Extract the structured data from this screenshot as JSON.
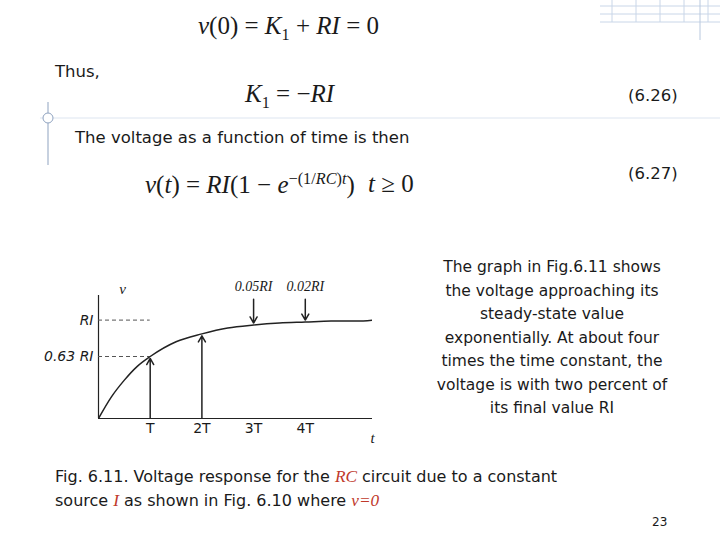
{
  "header_equation": [
    {
      "text": "v",
      "style": "italic"
    },
    {
      "text": "(0) = ",
      "style": "roman"
    },
    {
      "text": "K",
      "style": "italic"
    },
    {
      "text": "1",
      "style": "sub"
    },
    {
      "text": " + ",
      "style": "roman"
    },
    {
      "text": "RI",
      "style": "italic"
    },
    {
      "text": " = 0",
      "style": "roman"
    }
  ],
  "thus": "Thus,",
  "equation_626": {
    "runs": [
      {
        "text": "K",
        "style": "italic"
      },
      {
        "text": "1",
        "style": "sub"
      },
      {
        "text": " = −",
        "style": "roman"
      },
      {
        "text": "RI",
        "style": "italic"
      }
    ],
    "number": "(6.26)"
  },
  "intro": "The voltage as a function of time is then",
  "equation_627": {
    "runs": [
      {
        "text": "v",
        "style": "italic"
      },
      {
        "text": "(",
        "style": "roman"
      },
      {
        "text": "t",
        "style": "italic"
      },
      {
        "text": ") = ",
        "style": "roman"
      },
      {
        "text": "RI",
        "style": "italic"
      },
      {
        "text": "(1 − ",
        "style": "roman"
      },
      {
        "text": "e",
        "style": "italic"
      },
      {
        "text": "−(1/",
        "style": "sup"
      },
      {
        "text": "RC",
        "style": "sup-italic"
      },
      {
        "text": ")",
        "style": "sup"
      },
      {
        "text": "t",
        "style": "sup-italic"
      },
      {
        "text": ")",
        "style": "roman"
      }
    ],
    "condition": [
      {
        "text": "t",
        "style": "italic"
      },
      {
        "text": " ≥ 0",
        "style": "roman"
      }
    ],
    "number": "(6.27)"
  },
  "chart_data": {
    "type": "line",
    "x_label": "t",
    "y_label": "v",
    "x": [
      0,
      0.25,
      0.5,
      0.75,
      1,
      1.5,
      2,
      2.5,
      3,
      3.5,
      4,
      4.5,
      5,
      5.3
    ],
    "values": [
      0,
      0.22,
      0.39,
      0.53,
      0.63,
      0.78,
      0.86,
      0.92,
      0.95,
      0.97,
      0.98,
      0.99,
      0.99,
      1.0
    ],
    "color": "#222222",
    "xlim": [
      0,
      5.3
    ],
    "ylim": [
      0,
      1.25
    ],
    "xticks": [
      {
        "value": 1,
        "label": "T"
      },
      {
        "value": 2,
        "label": "2T"
      },
      {
        "value": 3,
        "label": "3T"
      },
      {
        "value": 4,
        "label": "4T"
      }
    ],
    "yticks": [
      {
        "value": 0.63,
        "label": "0.63 RI"
      },
      {
        "value": 1,
        "label": "RI"
      }
    ],
    "annotations": [
      {
        "text": "0.05RI",
        "x": 3
      },
      {
        "text": "0.02RI",
        "x": 4
      }
    ]
  },
  "paragraph": [
    "The graph in Fig.6.11 shows",
    "the voltage approaching its",
    "steady-state value",
    "exponentially. At about four",
    "times the time constant, the",
    "voltage is with two percent of",
    "its final value RI"
  ],
  "caption": [
    [
      {
        "text": "Fig. 6.11. Voltage response for the ",
        "style": "plain"
      },
      {
        "text": "RC",
        "style": "emphasis"
      },
      {
        "text": " circuit due to a constant",
        "style": "plain"
      }
    ],
    [
      {
        "text": "source ",
        "style": "plain"
      },
      {
        "text": "I",
        "style": "emphasis"
      },
      {
        "text": " as shown in Fig. 6.10 where ",
        "style": "plain"
      },
      {
        "text": "v=0",
        "style": "emphasis"
      }
    ]
  ],
  "page_number": "23"
}
